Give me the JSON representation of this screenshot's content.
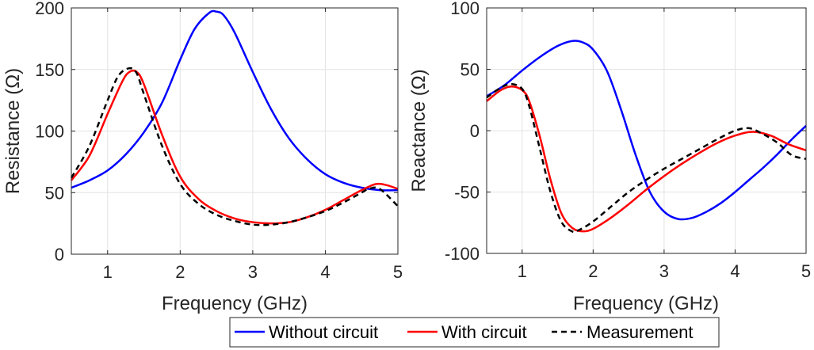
{
  "legend": {
    "items": [
      {
        "label": "Without circuit",
        "color": "#0000FF",
        "dash": false
      },
      {
        "label": "With circuit",
        "color": "#FF0000",
        "dash": false
      },
      {
        "label": "Measurement",
        "color": "#000000",
        "dash": true
      }
    ]
  },
  "chart_data": [
    {
      "type": "line",
      "title": "",
      "xlabel": "Frequency (GHz)",
      "ylabel": "Resistance (Ω)",
      "xlim": [
        0.5,
        5
      ],
      "ylim": [
        0,
        200
      ],
      "xticks": [
        1,
        2,
        3,
        4,
        5
      ],
      "yticks": [
        0,
        50,
        100,
        150,
        200
      ],
      "grid": true,
      "series": [
        {
          "name": "Without circuit",
          "color": "#0000FF",
          "dash": false,
          "x": [
            0.5,
            0.75,
            1.0,
            1.25,
            1.5,
            1.75,
            2.0,
            2.2,
            2.4,
            2.5,
            2.6,
            2.75,
            3.0,
            3.25,
            3.5,
            3.75,
            4.0,
            4.25,
            4.5,
            4.75,
            5.0
          ],
          "y": [
            54,
            60,
            68,
            81,
            99,
            123,
            158,
            183,
            196,
            197,
            194,
            180,
            148,
            118,
            94,
            77,
            65,
            58,
            54,
            52,
            52
          ]
        },
        {
          "name": "With circuit",
          "color": "#FF0000",
          "dash": false,
          "x": [
            0.5,
            0.75,
            1.0,
            1.2,
            1.3,
            1.4,
            1.5,
            1.75,
            2.0,
            2.25,
            2.5,
            2.75,
            3.0,
            3.25,
            3.5,
            3.75,
            4.0,
            4.25,
            4.5,
            4.7,
            4.85,
            5.0
          ],
          "y": [
            60,
            80,
            114,
            140,
            148,
            148,
            138,
            97,
            63,
            45,
            35,
            29,
            26,
            25,
            26,
            30,
            36,
            44,
            52,
            57,
            56,
            53
          ]
        },
        {
          "name": "Measurement",
          "color": "#000000",
          "dash": true,
          "x": [
            0.5,
            0.75,
            1.0,
            1.15,
            1.3,
            1.4,
            1.5,
            1.75,
            2.0,
            2.25,
            2.5,
            2.75,
            3.0,
            3.25,
            3.5,
            3.75,
            4.0,
            4.25,
            4.5,
            4.6,
            4.75,
            5.0
          ],
          "y": [
            62,
            88,
            125,
            145,
            151,
            147,
            130,
            88,
            57,
            41,
            32,
            27,
            24,
            24,
            26,
            30,
            35,
            42,
            50,
            53,
            53,
            39
          ]
        }
      ]
    },
    {
      "type": "line",
      "title": "",
      "xlabel": "Frequency (GHz)",
      "ylabel": "Reactance (Ω)",
      "xlim": [
        0.5,
        5
      ],
      "ylim": [
        -100,
        100
      ],
      "xticks": [
        1,
        2,
        3,
        4,
        5
      ],
      "yticks": [
        -100,
        -50,
        0,
        50,
        100
      ],
      "grid": true,
      "series": [
        {
          "name": "Without circuit",
          "color": "#0000FF",
          "dash": false,
          "x": [
            0.5,
            0.75,
            1.0,
            1.25,
            1.5,
            1.7,
            1.85,
            2.0,
            2.2,
            2.4,
            2.6,
            2.8,
            3.0,
            3.2,
            3.4,
            3.6,
            3.8,
            4.0,
            4.2,
            4.4,
            4.6,
            4.8,
            5.0
          ],
          "y": [
            28,
            37,
            49,
            60,
            69,
            73,
            72,
            66,
            48,
            16,
            -20,
            -50,
            -66,
            -72,
            -71,
            -66,
            -59,
            -50,
            -40,
            -30,
            -19,
            -7,
            4
          ]
        },
        {
          "name": "With circuit",
          "color": "#FF0000",
          "dash": false,
          "x": [
            0.5,
            0.7,
            0.85,
            1.0,
            1.1,
            1.25,
            1.4,
            1.55,
            1.7,
            1.85,
            2.0,
            2.25,
            2.5,
            2.75,
            3.0,
            3.25,
            3.5,
            3.75,
            4.0,
            4.25,
            4.5,
            4.75,
            5.0
          ],
          "y": [
            24,
            33,
            36,
            33,
            24,
            -5,
            -40,
            -67,
            -79,
            -82,
            -80,
            -71,
            -60,
            -48,
            -37,
            -27,
            -18,
            -10,
            -4,
            -1,
            -4,
            -11,
            -16
          ]
        },
        {
          "name": "Measurement",
          "color": "#000000",
          "dash": true,
          "x": [
            0.5,
            0.7,
            0.85,
            1.0,
            1.1,
            1.25,
            1.4,
            1.55,
            1.7,
            1.8,
            2.0,
            2.25,
            2.5,
            2.75,
            3.0,
            3.25,
            3.5,
            3.75,
            4.0,
            4.2,
            4.4,
            4.6,
            4.8,
            5.0
          ],
          "y": [
            27,
            35,
            38,
            34,
            20,
            -15,
            -50,
            -74,
            -82,
            -81,
            -74,
            -62,
            -50,
            -40,
            -31,
            -23,
            -15,
            -7,
            0,
            2,
            -3,
            -10,
            -20,
            -23
          ]
        }
      ]
    }
  ]
}
